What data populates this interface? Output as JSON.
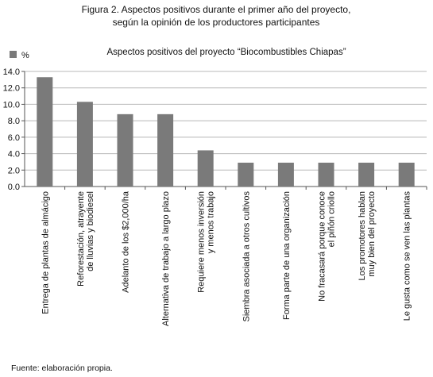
{
  "figure_caption_line1": "Figura 2. Aspectos positivos durante el primer año del proyecto,",
  "figure_caption_line2": "según la opinión de los productores participantes",
  "source_note": "Fuente: elaboración propia.",
  "chart_data": {
    "type": "bar",
    "title": "Aspectos positivos del proyecto “Biocombustibles Chiapas”",
    "legend": {
      "label": "%",
      "placement": "top-left",
      "color": "#7a7a7a"
    },
    "categories": [
      [
        "Entrega de plantas de almácigo"
      ],
      [
        "Reforestación, atrayente",
        "de lluvias y biodiesel"
      ],
      [
        "Adelanto de los $2,000/ha"
      ],
      [
        "Alternativa de trabajo a largo plazo"
      ],
      [
        "Requiere menos inversión",
        "y menos trabajo"
      ],
      [
        "Siembra asociada a otros cultivos"
      ],
      [
        "Forma parte de una organización"
      ],
      [
        "No fracasará porque conoce",
        "el piñón criollo"
      ],
      [
        "Los promotores hablan",
        "muy bien del proyecto"
      ],
      [
        "Le gusta como se ven las plantas"
      ]
    ],
    "series": [
      {
        "name": "%",
        "values": [
          13.3,
          10.3,
          8.8,
          8.8,
          4.4,
          2.9,
          2.9,
          2.9,
          2.9,
          2.9
        ]
      }
    ],
    "ylim": [
      0,
      14
    ],
    "yticks": [
      "0.0",
      "2.0",
      "4.0",
      "6.0",
      "8.0",
      "10.0",
      "12.0",
      "14.0"
    ],
    "grid": true,
    "bar_color": "#7a7a7a"
  }
}
